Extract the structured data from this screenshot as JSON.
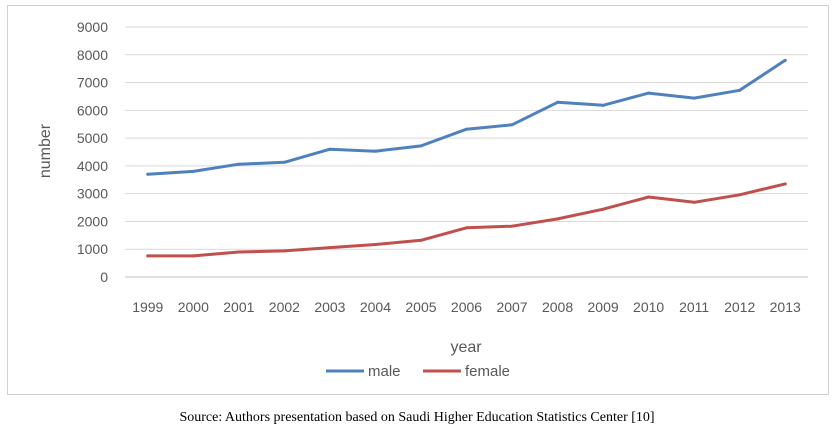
{
  "chart_data": {
    "type": "line",
    "title": "",
    "xlabel": "year",
    "ylabel": "number",
    "ylim": [
      0,
      9000
    ],
    "ytick_step": 1000,
    "grid": true,
    "legend_position": "bottom",
    "categories": [
      "1999",
      "2000",
      "2001",
      "2002",
      "2003",
      "2004",
      "2005",
      "2006",
      "2007",
      "2008",
      "2009",
      "2010",
      "2011",
      "2012",
      "2013"
    ],
    "series": [
      {
        "name": "male",
        "color": "#4f81bd",
        "values": [
          3700,
          3800,
          4060,
          4130,
          4600,
          4530,
          4720,
          5320,
          5480,
          6290,
          6180,
          6620,
          6440,
          6720,
          7800
        ]
      },
      {
        "name": "female",
        "color": "#c0504d",
        "values": [
          760,
          760,
          900,
          940,
          1060,
          1170,
          1320,
          1770,
          1830,
          2090,
          2440,
          2880,
          2690,
          2960,
          3350
        ]
      }
    ]
  },
  "caption": "Source: Authors presentation based on Saudi Higher Education Statistics Center [10]"
}
